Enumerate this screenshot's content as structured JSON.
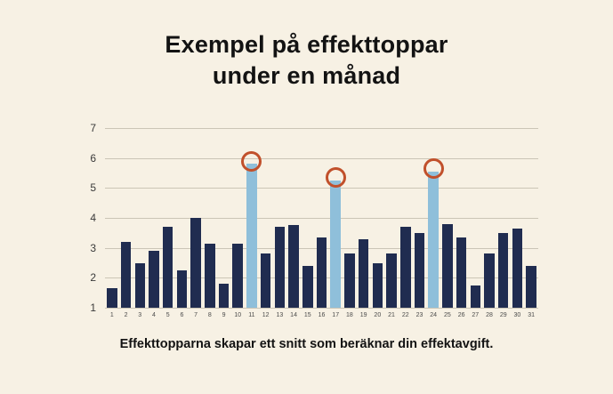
{
  "title": {
    "line1": "Exempel på effekttoppar",
    "line2": "under en månad"
  },
  "caption": "Effekttopparna skapar ett snitt som beräknar din effektavgift.",
  "colors": {
    "background": "#f7f1e4",
    "bar_normal": "#202c50",
    "bar_peak": "#8fbfda",
    "peak_ring": "#c1502b",
    "gridline": "#cbc5b6",
    "text": "#131313",
    "tick_text": "#3a3a3a"
  },
  "chart_data": {
    "type": "bar",
    "title": "Exempel på effekttoppar under en månad",
    "xlabel": "",
    "ylabel": "",
    "categories": [
      "1",
      "2",
      "3",
      "4",
      "5",
      "6",
      "7",
      "8",
      "9",
      "10",
      "11",
      "12",
      "13",
      "14",
      "15",
      "16",
      "17",
      "18",
      "19",
      "20",
      "21",
      "22",
      "23",
      "24",
      "25",
      "26",
      "27",
      "28",
      "29",
      "30",
      "31"
    ],
    "values": [
      1.65,
      3.2,
      2.5,
      2.9,
      3.7,
      2.25,
      4.0,
      3.15,
      1.8,
      3.15,
      5.8,
      2.8,
      3.7,
      3.75,
      2.4,
      3.35,
      5.25,
      2.8,
      3.3,
      2.5,
      2.8,
      3.7,
      3.5,
      5.55,
      3.8,
      3.35,
      1.75,
      2.8,
      3.5,
      3.65,
      2.4
    ],
    "peak_days": [
      "11",
      "17",
      "24"
    ],
    "ylim": [
      1,
      7
    ],
    "y_ticks": [
      1,
      2,
      3,
      4,
      5,
      6,
      7
    ],
    "grid": true,
    "legend": false,
    "annotation": "Orange rings circle the tops of the three highest (light blue) peak bars"
  }
}
